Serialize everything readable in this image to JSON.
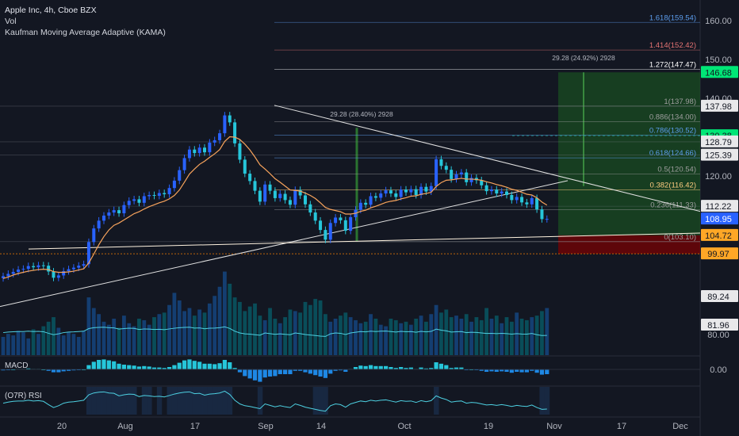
{
  "legend": {
    "symbol": "Apple Inc, 4h, Cboe BZX",
    "vol": "Vol",
    "kama": "Kaufman Moving Average Adaptive (KAMA)"
  },
  "panes": {
    "macd_label": "MACD",
    "rsi_label": "(O7R) RSI"
  },
  "colors": {
    "background": "#131722",
    "up": "#2962ff",
    "down": "#26c6da",
    "kama": "#f7a35c",
    "trend": "#e0e0e0",
    "fib_top": "#e57373",
    "target": "#1b5e20",
    "stop": "#7f0000"
  },
  "chart_data": {
    "type": "candlestick",
    "price_axis": {
      "ticks": [
        160.0,
        150.0,
        140.0,
        130.0,
        120.0
      ],
      "range": [
        98,
        162
      ]
    },
    "time_axis": {
      "ticks": [
        "20",
        "Aug",
        "17",
        "Sep",
        "14",
        "Oct",
        "19",
        "Nov",
        "17",
        "Dec"
      ]
    },
    "price_labels": [
      {
        "text": "146.68",
        "style": "green"
      },
      {
        "text": "137.98",
        "style": "box"
      },
      {
        "text": "130.38",
        "style": "green"
      },
      {
        "text": "128.79",
        "style": "box"
      },
      {
        "text": "125.39",
        "style": "box"
      },
      {
        "text": "112.22",
        "style": "box"
      },
      {
        "text": "108.95",
        "style": "blue"
      },
      {
        "text": "104.72",
        "style": "orange"
      },
      {
        "text": "99.97",
        "style": "orange"
      },
      {
        "text": "89.24",
        "style": "box"
      },
      {
        "text": "81.96",
        "style": "box"
      },
      {
        "text": "80.00",
        "style": "plain"
      },
      {
        "text": "0.00",
        "style": "plain"
      }
    ],
    "fib_levels": [
      {
        "label": "1.618(159.54)",
        "price": 159.54,
        "color": "#5c9ded"
      },
      {
        "label": "1.414(152.42)",
        "price": 152.42,
        "color": "#e57373"
      },
      {
        "label": "1.272(147.47)",
        "price": 147.47,
        "color": "#ffffff"
      },
      {
        "label": "1(137.98)",
        "price": 137.98,
        "color": "#9e9e9e"
      },
      {
        "label": "0.886(134.00)",
        "price": 134.0,
        "color": "#9e9e9e"
      },
      {
        "label": "0.786(130.52)",
        "price": 130.52,
        "color": "#5c9ded"
      },
      {
        "label": "0.618(124.66)",
        "price": 124.66,
        "color": "#5c9ded"
      },
      {
        "label": "0.5(120.54)",
        "price": 120.54,
        "color": "#9e9e9e"
      },
      {
        "label": "0.382(116.42)",
        "price": 116.42,
        "color": "#ffcc80"
      },
      {
        "label": "0.236(111.33)",
        "price": 111.33,
        "color": "#9e9e9e"
      },
      {
        "label": "0(103.10)",
        "price": 103.1,
        "color": "#9e9e9e"
      }
    ],
    "measures": [
      {
        "label": "29.28 (28.40%) 2928"
      },
      {
        "label": "29.28 (24.92%) 2928"
      }
    ],
    "closes": [
      94.2,
      94.8,
      95.3,
      95.9,
      96.1,
      96.8,
      96.5,
      97.0,
      96.9,
      95.4,
      93.8,
      94.4,
      95.5,
      96.0,
      96.4,
      96.9,
      97.3,
      103.0,
      106.5,
      108.5,
      109.8,
      110.6,
      111.2,
      110.4,
      112.5,
      113.6,
      114.0,
      113.1,
      114.8,
      115.1,
      114.9,
      115.6,
      115.3,
      116.9,
      118.8,
      121.5,
      124.6,
      126.8,
      125.9,
      127.3,
      126.1,
      128.6,
      129.2,
      131.0,
      135.6,
      133.8,
      128.4,
      124.2,
      120.6,
      118.7,
      116.2,
      113.4,
      117.8,
      116.2,
      114.3,
      115.4,
      113.8,
      112.6,
      116.4,
      115.0,
      112.7,
      110.6,
      108.5,
      106.1,
      103.6,
      107.9,
      109.3,
      108.6,
      105.9,
      109.4,
      111.3,
      113.1,
      112.6,
      114.8,
      114.4,
      115.5,
      116.3,
      115.5,
      114.6,
      116.5,
      115.8,
      116.6,
      115.1,
      117.2,
      116.0,
      117.4,
      124.3,
      122.6,
      121.6,
      119.2,
      120.4,
      120.9,
      118.4,
      119.5,
      118.9,
      117.6,
      116.1,
      116.5,
      115.5,
      116.0,
      115.1,
      113.8,
      114.6,
      113.2,
      112.7,
      114.3,
      111.4,
      108.9,
      108.95
    ],
    "kama": [
      93.6,
      94.0,
      94.5,
      94.9,
      95.2,
      95.5,
      95.7,
      95.9,
      96.0,
      95.9,
      95.4,
      95.2,
      95.2,
      95.3,
      95.5,
      95.8,
      96.1,
      97.6,
      99.9,
      102.3,
      104.4,
      106.1,
      107.3,
      107.9,
      108.7,
      109.5,
      110.3,
      110.8,
      111.5,
      112.1,
      112.6,
      113.1,
      113.5,
      114.1,
      115.0,
      116.4,
      118.4,
      120.5,
      121.8,
      123.0,
      123.8,
      124.8,
      125.7,
      126.8,
      128.9,
      130.1,
      130.0,
      129.4,
      128.2,
      126.7,
      124.9,
      122.9,
      121.8,
      120.6,
      119.3,
      118.4,
      117.4,
      116.4,
      116.3,
      116.1,
      115.6,
      115.0,
      114.2,
      113.1,
      111.9,
      111.4,
      111.1,
      110.8,
      110.2,
      110.2,
      110.4,
      110.9,
      111.2,
      111.8,
      112.2,
      112.7,
      113.2,
      113.5,
      113.7,
      114.1,
      114.4,
      114.8,
      114.9,
      115.3,
      115.5,
      115.8,
      117.3,
      118.3,
      118.9,
      119.0,
      119.2,
      119.4,
      119.2,
      119.2,
      119.1,
      118.9,
      118.5,
      118.2,
      117.8,
      117.5,
      117.1,
      116.6,
      116.3,
      115.8,
      115.3,
      115.1,
      114.4,
      113.3,
      112.5
    ],
    "volume": [
      12,
      14,
      13,
      16,
      15,
      11,
      17,
      14,
      19,
      22,
      25,
      18,
      13,
      15,
      14,
      12,
      16,
      38,
      31,
      27,
      22,
      20,
      24,
      18,
      26,
      21,
      19,
      24,
      23,
      20,
      25,
      27,
      28,
      33,
      41,
      36,
      29,
      31,
      26,
      30,
      28,
      34,
      39,
      45,
      55,
      47,
      38,
      35,
      29,
      32,
      34,
      26,
      23,
      31,
      24,
      21,
      25,
      30,
      29,
      28,
      35,
      33,
      37,
      36,
      27,
      22,
      24,
      26,
      28,
      25,
      23,
      21,
      22,
      27,
      24,
      20,
      19,
      24,
      23,
      21,
      22,
      20,
      24,
      26,
      22,
      27,
      33,
      28,
      30,
      25,
      26,
      24,
      27,
      22,
      25,
      23,
      31,
      24,
      26,
      21,
      25,
      22,
      28,
      24,
      23,
      25,
      26,
      29,
      31
    ],
    "macd": [
      -0.2,
      -0.1,
      0.0,
      0.1,
      0.1,
      0.2,
      0.1,
      0.1,
      0.0,
      -0.3,
      -0.6,
      -0.6,
      -0.4,
      -0.3,
      -0.2,
      -0.1,
      0.0,
      0.9,
      1.6,
      2.0,
      2.1,
      1.9,
      1.7,
      1.2,
      1.0,
      0.9,
      0.8,
      0.6,
      0.7,
      0.6,
      0.4,
      0.4,
      0.3,
      0.5,
      0.9,
      1.4,
      1.9,
      2.1,
      1.8,
      1.6,
      1.2,
      1.2,
      1.1,
      1.3,
      2.0,
      1.5,
      0.3,
      -0.6,
      -1.4,
      -1.9,
      -2.3,
      -2.6,
      -1.7,
      -1.5,
      -1.4,
      -1.0,
      -1.0,
      -1.0,
      -0.3,
      -0.3,
      -0.6,
      -0.9,
      -1.2,
      -1.5,
      -1.8,
      -0.9,
      -0.3,
      -0.2,
      -0.5,
      0.1,
      0.5,
      0.8,
      0.7,
      0.9,
      0.7,
      0.7,
      0.7,
      0.5,
      0.3,
      0.5,
      0.3,
      0.4,
      0.1,
      0.4,
      0.2,
      0.3,
      1.5,
      1.2,
      0.9,
      0.3,
      0.4,
      0.4,
      -0.1,
      0.0,
      -0.1,
      -0.3,
      -0.5,
      -0.4,
      -0.5,
      -0.4,
      -0.5,
      -0.7,
      -0.5,
      -0.6,
      -0.6,
      -0.3,
      -0.7,
      -1.1,
      -1.0
    ],
    "rsi": [
      52,
      55,
      57,
      58,
      58,
      60,
      58,
      59,
      57,
      48,
      40,
      45,
      52,
      55,
      56,
      58,
      60,
      75,
      80,
      82,
      83,
      80,
      79,
      72,
      75,
      77,
      76,
      70,
      73,
      72,
      70,
      71,
      69,
      73,
      77,
      80,
      82,
      83,
      78,
      79,
      74,
      77,
      78,
      80,
      85,
      76,
      60,
      50,
      45,
      43,
      40,
      37,
      50,
      46,
      42,
      45,
      42,
      40,
      50,
      46,
      41,
      38,
      35,
      32,
      30,
      45,
      50,
      48,
      41,
      50,
      54,
      58,
      56,
      60,
      58,
      60,
      61,
      58,
      55,
      59,
      57,
      58,
      54,
      59,
      56,
      59,
      72,
      66,
      62,
      55,
      57,
      58,
      52,
      54,
      53,
      50,
      47,
      48,
      46,
      48,
      46,
      43,
      46,
      44,
      43,
      47,
      40,
      35,
      36
    ]
  }
}
